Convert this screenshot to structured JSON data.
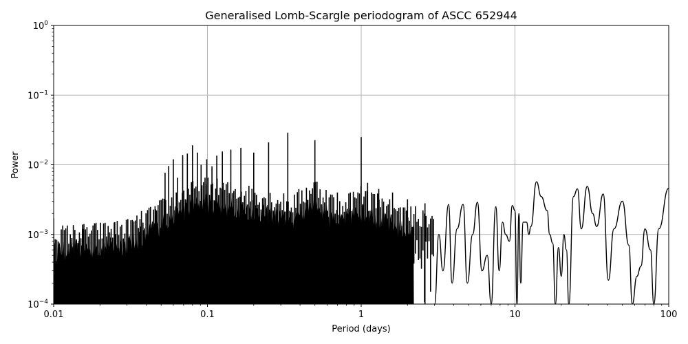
{
  "chart_data": {
    "type": "line",
    "title": "Generalised Lomb-Scargle periodogram of ASCC 652944",
    "xlabel": "Period (days)",
    "ylabel": "Power",
    "xscale": "log",
    "yscale": "log",
    "xlim": [
      0.01,
      100
    ],
    "ylim": [
      0.0001,
      1
    ],
    "grid": true,
    "legend": null,
    "x_ticks": [
      {
        "value": 0.01,
        "label": "0.01"
      },
      {
        "value": 0.1,
        "label": "0.1"
      },
      {
        "value": 1,
        "label": "1"
      },
      {
        "value": 10,
        "label": "10"
      },
      {
        "value": 100,
        "label": "100"
      }
    ],
    "y_ticks": [
      {
        "value": 1,
        "base": "10",
        "exp": "0"
      },
      {
        "value": 0.1,
        "base": "10",
        "exp": "−1"
      },
      {
        "value": 0.01,
        "base": "10",
        "exp": "−2"
      },
      {
        "value": 0.001,
        "base": "10",
        "exp": "−3"
      },
      {
        "value": 0.0001,
        "base": "10",
        "exp": "−4"
      }
    ],
    "line_color": "#000000",
    "grid_color": "#b0b0b0",
    "noise_envelope": [
      {
        "period": 0.01,
        "upper": 0.0008
      },
      {
        "period": 0.02,
        "upper": 0.0009
      },
      {
        "period": 0.03,
        "upper": 0.001
      },
      {
        "period": 0.04,
        "upper": 0.0014
      },
      {
        "period": 0.06,
        "upper": 0.0025
      },
      {
        "period": 0.08,
        "upper": 0.0035
      },
      {
        "period": 0.1,
        "upper": 0.004
      },
      {
        "period": 0.2,
        "upper": 0.003
      },
      {
        "period": 0.35,
        "upper": 0.0022
      },
      {
        "period": 0.5,
        "upper": 0.004
      },
      {
        "period": 0.7,
        "upper": 0.002
      },
      {
        "period": 1.0,
        "upper": 0.003
      },
      {
        "period": 2.0,
        "upper": 0.0015
      }
    ],
    "peaks": [
      {
        "period": 0.01,
        "power": 0.0017
      },
      {
        "period": 0.0155,
        "power": 0.0012
      },
      {
        "period": 0.0185,
        "power": 0.0014
      },
      {
        "period": 0.025,
        "power": 0.0015
      },
      {
        "period": 0.034,
        "power": 0.0013
      },
      {
        "period": 0.037,
        "power": 0.0013
      },
      {
        "period": 0.046,
        "power": 0.0023
      },
      {
        "period": 0.053,
        "power": 0.0077
      },
      {
        "period": 0.056,
        "power": 0.0096
      },
      {
        "period": 0.06,
        "power": 0.012
      },
      {
        "period": 0.064,
        "power": 0.0065
      },
      {
        "period": 0.069,
        "power": 0.0138
      },
      {
        "period": 0.074,
        "power": 0.0145
      },
      {
        "period": 0.08,
        "power": 0.019
      },
      {
        "period": 0.086,
        "power": 0.015
      },
      {
        "period": 0.091,
        "power": 0.01
      },
      {
        "period": 0.099,
        "power": 0.012
      },
      {
        "period": 0.107,
        "power": 0.0095
      },
      {
        "period": 0.115,
        "power": 0.0135
      },
      {
        "period": 0.125,
        "power": 0.0155
      },
      {
        "period": 0.142,
        "power": 0.0165
      },
      {
        "period": 0.165,
        "power": 0.0175
      },
      {
        "period": 0.2,
        "power": 0.015
      },
      {
        "period": 0.25,
        "power": 0.021
      },
      {
        "period": 0.333,
        "power": 0.029
      },
      {
        "period": 0.5,
        "power": 0.0225
      },
      {
        "period": 0.7,
        "power": 0.004
      },
      {
        "period": 1.0,
        "power": 0.025
      },
      {
        "period": 1.1,
        "power": 0.0055
      },
      {
        "period": 1.3,
        "power": 0.0045
      },
      {
        "period": 1.6,
        "power": 0.004
      },
      {
        "period": 2.0,
        "power": 0.0032
      },
      {
        "period": 2.6,
        "power": 0.0028
      },
      {
        "period": 3.7,
        "power": 0.0027
      },
      {
        "period": 4.6,
        "power": 0.0027
      },
      {
        "period": 5.7,
        "power": 0.0029
      },
      {
        "period": 7.5,
        "power": 0.0025
      },
      {
        "period": 9.6,
        "power": 0.0026
      },
      {
        "period": 13.8,
        "power": 0.0057
      },
      {
        "period": 20.8,
        "power": 0.001
      },
      {
        "period": 25.5,
        "power": 0.0045
      },
      {
        "period": 29.5,
        "power": 0.0049
      },
      {
        "period": 37.5,
        "power": 0.0038
      },
      {
        "period": 50.0,
        "power": 0.003
      },
      {
        "period": 70.0,
        "power": 0.0012
      },
      {
        "period": 100.0,
        "power": 0.0046
      }
    ],
    "long_period_curve": [
      [
        3.0,
        0.0001
      ],
      [
        3.2,
        0.001
      ],
      [
        3.4,
        0.0003
      ],
      [
        3.7,
        0.0027
      ],
      [
        3.9,
        0.0002
      ],
      [
        4.2,
        0.0012
      ],
      [
        4.6,
        0.0027
      ],
      [
        4.9,
        0.0002
      ],
      [
        5.3,
        0.001
      ],
      [
        5.7,
        0.0029
      ],
      [
        6.1,
        0.0003
      ],
      [
        6.6,
        0.0005
      ],
      [
        7.0,
        0.0001
      ],
      [
        7.5,
        0.0025
      ],
      [
        7.9,
        0.0003
      ],
      [
        8.3,
        0.0015
      ],
      [
        8.7,
        0.001
      ],
      [
        9.2,
        0.0008
      ],
      [
        9.6,
        0.0026
      ],
      [
        10.0,
        0.0022
      ],
      [
        10.3,
        0.0001
      ],
      [
        10.6,
        0.002
      ],
      [
        10.9,
        0.0002
      ],
      [
        11.3,
        0.0015
      ],
      [
        11.9,
        0.0015
      ],
      [
        12.3,
        0.001
      ],
      [
        12.7,
        0.0013
      ],
      [
        13.8,
        0.0057
      ],
      [
        14.8,
        0.0035
      ],
      [
        16.2,
        0.0022
      ],
      [
        16.8,
        0.001
      ],
      [
        17.6,
        0.00075
      ],
      [
        18.3,
        0.0001
      ],
      [
        19.2,
        0.00065
      ],
      [
        20.0,
        0.00025
      ],
      [
        20.8,
        0.001
      ],
      [
        21.6,
        0.0006
      ],
      [
        22.4,
        0.0001
      ],
      [
        24.0,
        0.0035
      ],
      [
        25.5,
        0.0045
      ],
      [
        27.0,
        0.0012
      ],
      [
        29.5,
        0.0049
      ],
      [
        32.0,
        0.002
      ],
      [
        34.0,
        0.0013
      ],
      [
        37.5,
        0.0038
      ],
      [
        40.5,
        0.00022
      ],
      [
        44.0,
        0.0012
      ],
      [
        50.0,
        0.003
      ],
      [
        55.0,
        0.0007
      ],
      [
        58.0,
        0.0001
      ],
      [
        62.0,
        0.00025
      ],
      [
        66.0,
        0.00035
      ],
      [
        70.0,
        0.0012
      ],
      [
        76.0,
        0.0006
      ],
      [
        80.0,
        0.0001
      ],
      [
        86.0,
        0.0012
      ],
      [
        100.0,
        0.0046
      ]
    ]
  }
}
